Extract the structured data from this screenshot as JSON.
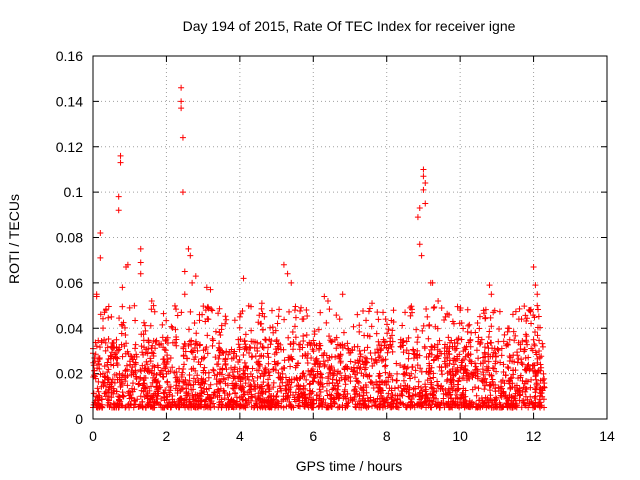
{
  "chart_data": {
    "type": "scatter",
    "title": "Day 194 of 2015, Rate Of TEC Index for receiver igne",
    "xlabel": "GPS time / hours",
    "ylabel": "ROTI / TECUs",
    "xlim": [
      0,
      14
    ],
    "ylim": [
      0,
      0.16
    ],
    "x_ticks": [
      "0",
      "2",
      "4",
      "6",
      "8",
      "10",
      "12",
      "14"
    ],
    "y_ticks": [
      "0",
      "0.02",
      "0.04",
      "0.06",
      "0.08",
      "0.1",
      "0.12",
      "0.14",
      "0.16"
    ],
    "grid": true,
    "marker": "+",
    "series_color": "#ff0000",
    "series": [
      {
        "name": "ROTI",
        "x_range": [
          0,
          12.3
        ],
        "typical_min": 0.005,
        "typical_max": 0.035,
        "notable_points": [
          {
            "x": 0.0,
            "y": 0.031
          },
          {
            "x": 0.0,
            "y": 0.029
          },
          {
            "x": 0.1,
            "y": 0.054
          },
          {
            "x": 0.1,
            "y": 0.055
          },
          {
            "x": 0.2,
            "y": 0.082
          },
          {
            "x": 0.2,
            "y": 0.071
          },
          {
            "x": 0.35,
            "y": 0.048
          },
          {
            "x": 0.5,
            "y": 0.045
          },
          {
            "x": 0.7,
            "y": 0.092
          },
          {
            "x": 0.7,
            "y": 0.098
          },
          {
            "x": 0.75,
            "y": 0.113
          },
          {
            "x": 0.75,
            "y": 0.116
          },
          {
            "x": 0.8,
            "y": 0.058
          },
          {
            "x": 0.9,
            "y": 0.067
          },
          {
            "x": 0.95,
            "y": 0.068
          },
          {
            "x": 1.0,
            "y": 0.049
          },
          {
            "x": 1.3,
            "y": 0.075
          },
          {
            "x": 1.3,
            "y": 0.069
          },
          {
            "x": 1.3,
            "y": 0.064
          },
          {
            "x": 1.6,
            "y": 0.052
          },
          {
            "x": 1.65,
            "y": 0.05
          },
          {
            "x": 1.9,
            "y": 0.036
          },
          {
            "x": 2.4,
            "y": 0.146
          },
          {
            "x": 2.4,
            "y": 0.14
          },
          {
            "x": 2.4,
            "y": 0.137
          },
          {
            "x": 2.45,
            "y": 0.124
          },
          {
            "x": 2.45,
            "y": 0.1
          },
          {
            "x": 2.5,
            "y": 0.065
          },
          {
            "x": 2.6,
            "y": 0.075
          },
          {
            "x": 2.65,
            "y": 0.072
          },
          {
            "x": 2.5,
            "y": 0.055
          },
          {
            "x": 2.7,
            "y": 0.06
          },
          {
            "x": 2.8,
            "y": 0.063
          },
          {
            "x": 2.9,
            "y": 0.046
          },
          {
            "x": 3.1,
            "y": 0.058
          },
          {
            "x": 3.2,
            "y": 0.057
          },
          {
            "x": 3.6,
            "y": 0.042
          },
          {
            "x": 4.1,
            "y": 0.062
          },
          {
            "x": 4.0,
            "y": 0.045
          },
          {
            "x": 4.6,
            "y": 0.051
          },
          {
            "x": 5.2,
            "y": 0.068
          },
          {
            "x": 5.3,
            "y": 0.064
          },
          {
            "x": 5.4,
            "y": 0.06
          },
          {
            "x": 5.5,
            "y": 0.048
          },
          {
            "x": 5.7,
            "y": 0.044
          },
          {
            "x": 6.3,
            "y": 0.054
          },
          {
            "x": 6.4,
            "y": 0.052
          },
          {
            "x": 6.8,
            "y": 0.055
          },
          {
            "x": 7.2,
            "y": 0.046
          },
          {
            "x": 7.6,
            "y": 0.051
          },
          {
            "x": 7.9,
            "y": 0.047
          },
          {
            "x": 8.5,
            "y": 0.047
          },
          {
            "x": 8.85,
            "y": 0.089
          },
          {
            "x": 8.9,
            "y": 0.093
          },
          {
            "x": 8.9,
            "y": 0.077
          },
          {
            "x": 8.95,
            "y": 0.072
          },
          {
            "x": 9.0,
            "y": 0.11
          },
          {
            "x": 9.0,
            "y": 0.107
          },
          {
            "x": 9.05,
            "y": 0.104
          },
          {
            "x": 9.0,
            "y": 0.101
          },
          {
            "x": 9.05,
            "y": 0.095
          },
          {
            "x": 9.2,
            "y": 0.06
          },
          {
            "x": 9.25,
            "y": 0.06
          },
          {
            "x": 9.4,
            "y": 0.052
          },
          {
            "x": 9.6,
            "y": 0.045
          },
          {
            "x": 10.0,
            "y": 0.048
          },
          {
            "x": 10.3,
            "y": 0.038
          },
          {
            "x": 10.5,
            "y": 0.036
          },
          {
            "x": 10.8,
            "y": 0.059
          },
          {
            "x": 10.85,
            "y": 0.055
          },
          {
            "x": 10.9,
            "y": 0.047
          },
          {
            "x": 11.3,
            "y": 0.04
          },
          {
            "x": 11.6,
            "y": 0.044
          },
          {
            "x": 11.9,
            "y": 0.048
          },
          {
            "x": 12.0,
            "y": 0.067
          },
          {
            "x": 12.05,
            "y": 0.059
          },
          {
            "x": 12.1,
            "y": 0.055
          },
          {
            "x": 12.1,
            "y": 0.05
          }
        ]
      }
    ]
  }
}
